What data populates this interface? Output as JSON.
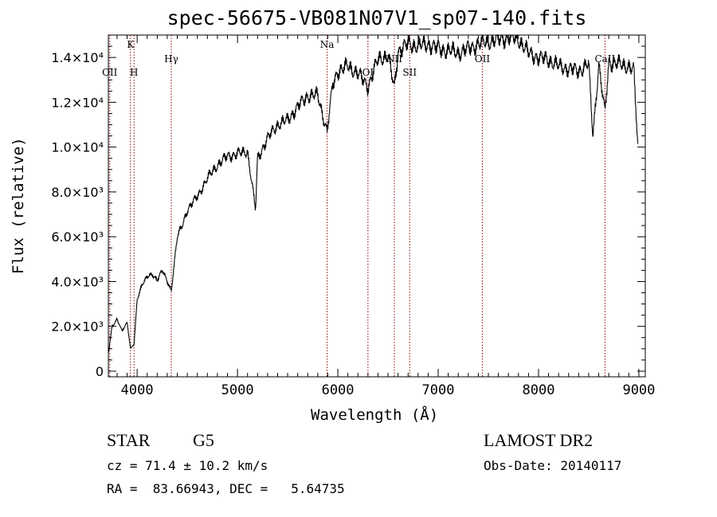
{
  "chart_data": {
    "type": "line",
    "title": "spec-56675-VB081N07V1_sp07-140.fits",
    "xlabel": "Wavelength (Å)",
    "ylabel": "Flux (relative)",
    "xlim": [
      3713,
      9064
    ],
    "ylim": [
      -250,
      15000
    ],
    "xticks": [
      4000,
      5000,
      6000,
      7000,
      8000,
      9000
    ],
    "xtick_labels": [
      "4000",
      "5000",
      "6000",
      "7000",
      "8000",
      "9000"
    ],
    "yticks": [
      0,
      2000,
      4000,
      6000,
      8000,
      10000,
      12000,
      14000
    ],
    "ytick_labels": [
      "0",
      "2.0×10³",
      "4.0×10³",
      "6.0×10³",
      "8.0×10³",
      "1.0×10⁴",
      "1.2×10⁴",
      "1.4×10⁴"
    ],
    "series": [
      {
        "name": "spectrum",
        "x": [
          3713,
          3750,
          3800,
          3850,
          3900,
          3934,
          3969,
          4000,
          4050,
          4100,
          4150,
          4200,
          4250,
          4300,
          4340,
          4400,
          4450,
          4500,
          4600,
          4700,
          4800,
          4900,
          5000,
          5100,
          5180,
          5200,
          5300,
          5400,
          5500,
          5600,
          5700,
          5800,
          5893,
          5950,
          6000,
          6100,
          6200,
          6300,
          6400,
          6500,
          6563,
          6600,
          6700,
          6800,
          6900,
          7000,
          7100,
          7200,
          7300,
          7400,
          7500,
          7600,
          7700,
          7800,
          7900,
          8000,
          8100,
          8200,
          8300,
          8400,
          8500,
          8542,
          8600,
          8662,
          8700,
          8800,
          8900,
          8950,
          8990
        ],
        "y": [
          800,
          2000,
          2300,
          1800,
          2200,
          1000,
          1200,
          3200,
          3900,
          4200,
          4300,
          4100,
          4500,
          4000,
          3600,
          6000,
          6500,
          7200,
          7800,
          8600,
          9200,
          9600,
          9700,
          9800,
          7200,
          9500,
          10400,
          11000,
          11200,
          11800,
          12300,
          12300,
          10700,
          12800,
          13400,
          13600,
          13300,
          12700,
          13900,
          14100,
          12600,
          14300,
          14600,
          14500,
          14600,
          14400,
          14300,
          14200,
          14400,
          14600,
          14700,
          14800,
          14900,
          14800,
          14200,
          14000,
          13900,
          13600,
          13500,
          13400,
          13700,
          10500,
          13700,
          11500,
          13800,
          13700,
          13600,
          13400,
          10000
        ]
      }
    ],
    "lines": [
      {
        "label": "OII",
        "wave": 3727,
        "row": 2
      },
      {
        "label": "K",
        "wave": 3934,
        "row": 0
      },
      {
        "label": "H",
        "wave": 3969,
        "row": 2
      },
      {
        "label": "Hγ",
        "wave": 4340,
        "row": 1
      },
      {
        "label": "Na",
        "wave": 5893,
        "row": 0
      },
      {
        "label": "OI",
        "wave": 6300,
        "row": 2
      },
      {
        "label": "NII",
        "wave": 6563,
        "row": 1
      },
      {
        "label": "SII",
        "wave": 6716,
        "row": 2
      },
      {
        "label": "OII",
        "wave": 7440,
        "row": 1
      },
      {
        "label": "CaII",
        "wave": 8662,
        "row": 1
      }
    ]
  },
  "info": {
    "class": "STAR",
    "subclass": "G5",
    "cz": "cz = 71.4 ± 10.2 km/s",
    "coords": "RA =  83.66943, DEC =   5.64735",
    "survey": "LAMOST DR2",
    "obs_date": "Obs-Date: 20140117"
  }
}
